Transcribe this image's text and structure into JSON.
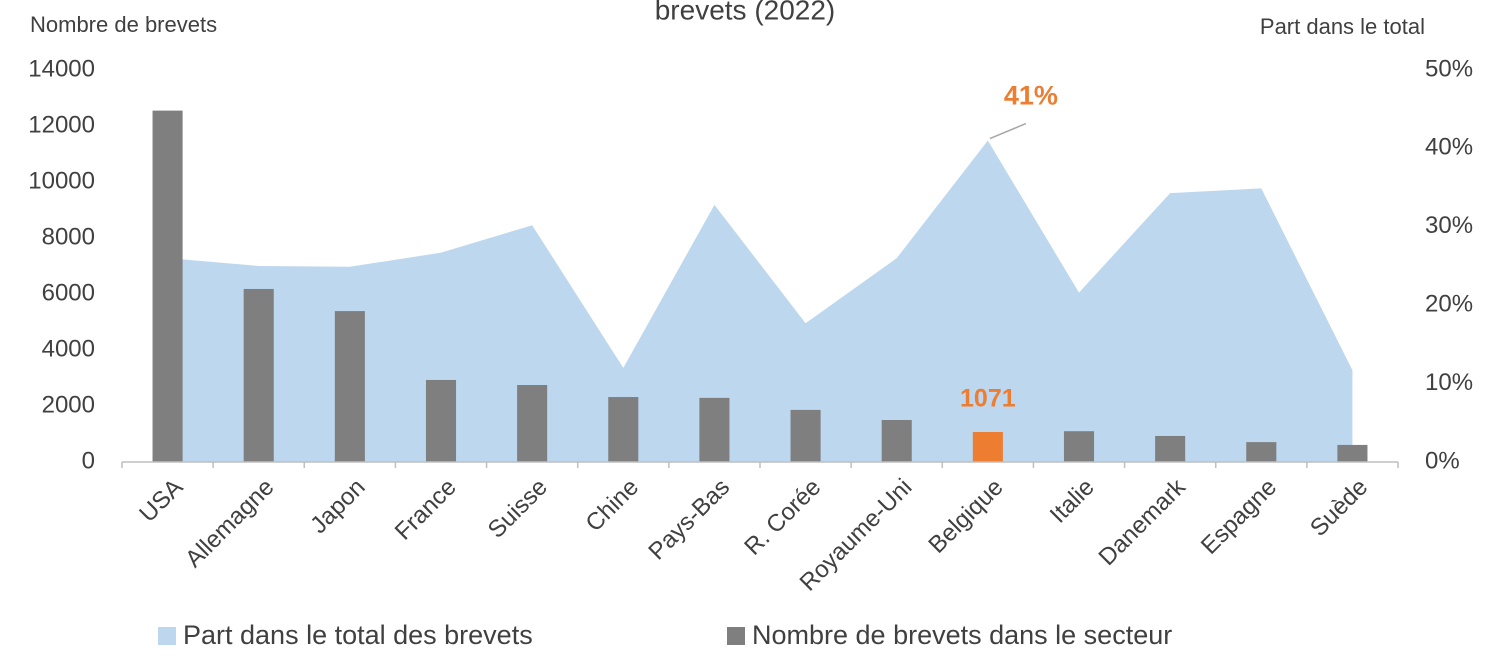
{
  "chart_data": {
    "type": "bar",
    "title": "brevets (2022)",
    "y_label": "Nombre de brevets",
    "y2_label": "Part dans le total",
    "categories": [
      "USA",
      "Allemagne",
      "Japon",
      "France",
      "Suisse",
      "Chine",
      "Pays-Bas",
      "R. Corée",
      "Royaume-Uni",
      "Belgique",
      "Italie",
      "Danemark",
      "Espagne",
      "Suède"
    ],
    "series": [
      {
        "name": "Part dans le total des brevets",
        "type": "area",
        "axis": "y2",
        "color": "#bdd7ee",
        "values": [
          26.0,
          25.0,
          24.9,
          26.7,
          30.2,
          12.0,
          32.8,
          17.7,
          26.0,
          41,
          21.6,
          34.3,
          34.9,
          11.7
        ],
        "value_labels": [
          null,
          null,
          null,
          null,
          null,
          null,
          null,
          null,
          null,
          "41%",
          null,
          null,
          null,
          null
        ],
        "label_color": "#ed7d31"
      },
      {
        "name": "Nombre de brevets dans le secteur",
        "type": "bar",
        "axis": "y",
        "color": "#7f7f7f",
        "colors": [
          "#7f7f7f",
          "#7f7f7f",
          "#7f7f7f",
          "#7f7f7f",
          "#7f7f7f",
          "#7f7f7f",
          "#7f7f7f",
          "#7f7f7f",
          "#7f7f7f",
          "#ed7d31",
          "#7f7f7f",
          "#7f7f7f",
          "#7f7f7f",
          "#7f7f7f"
        ],
        "values": [
          12550,
          6180,
          5390,
          2930,
          2750,
          2320,
          2290,
          1860,
          1500,
          1071,
          1100,
          930,
          710,
          610
        ],
        "labeled": [
          9
        ],
        "label_color": "#ed7d31"
      }
    ],
    "ylim": [
      0,
      14000
    ],
    "yticks": [
      0,
      2000,
      4000,
      6000,
      8000,
      10000,
      12000,
      14000
    ],
    "y2lim": [
      0,
      50
    ],
    "y2ticks": [
      {
        "value": 0,
        "label": "0%"
      },
      {
        "value": 10,
        "label": "10%"
      },
      {
        "value": 20,
        "label": "20%"
      },
      {
        "value": 30,
        "label": "30%"
      },
      {
        "value": 40,
        "label": "40%"
      },
      {
        "value": 50,
        "label": "50%"
      }
    ],
    "legend": "bottom"
  }
}
